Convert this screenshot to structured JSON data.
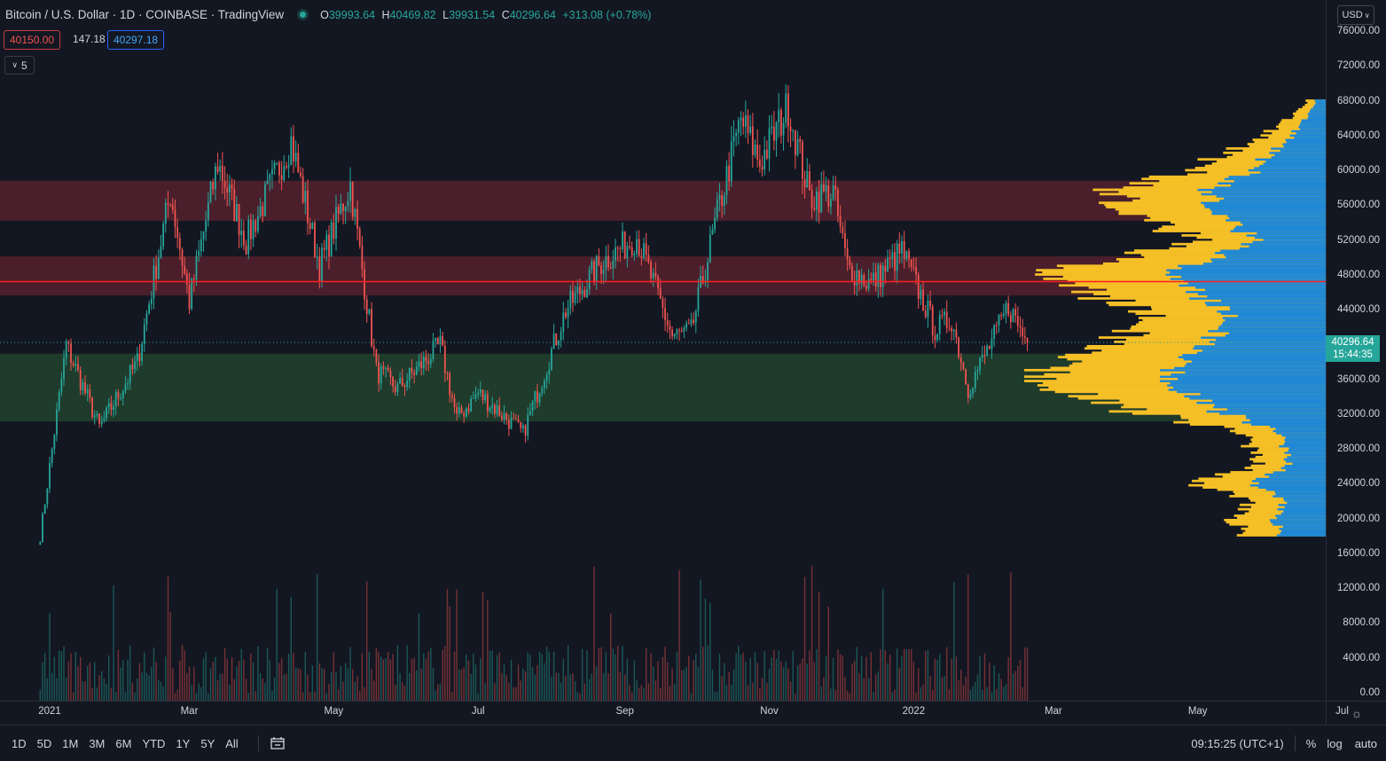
{
  "header": {
    "symbol": "Bitcoin / U.S. Dollar · 1D · COINBASE · TradingView",
    "ohlc": [
      {
        "key": "O",
        "value": "39993.64"
      },
      {
        "key": "H",
        "value": "40469.82"
      },
      {
        "key": "L",
        "value": "39931.54"
      },
      {
        "key": "C",
        "value": "40296.64"
      }
    ],
    "change": "+313.08 (+0.78%)"
  },
  "trade": {
    "sell": "40150.00",
    "spread": "147.18",
    "buy": "40297.18"
  },
  "indicators": {
    "toggle_label": "5"
  },
  "currency": "USD",
  "last_price": {
    "price": "40296.64",
    "countdown": "15:44:35"
  },
  "colors": {
    "background": "#131722",
    "up": "#26a69a",
    "down": "#ef5350",
    "resistance_zone": "#4a1f2b",
    "support_zone": "#1f3b2b",
    "poc_line": "#ff1f1f",
    "profile_gold": "#f5bf26",
    "profile_blue": "#1e88d6"
  },
  "price_axis_ticks": [
    "76000.00",
    "72000.00",
    "68000.00",
    "64000.00",
    "60000.00",
    "56000.00",
    "52000.00",
    "48000.00",
    "44000.00",
    "40000.00",
    "36000.00",
    "32000.00",
    "28000.00",
    "24000.00",
    "20000.00",
    "16000.00",
    "12000.00",
    "8000.00",
    "4000.00",
    "0.00"
  ],
  "time_axis_ticks": [
    "2021",
    "Mar",
    "May",
    "Jul",
    "Sep",
    "Nov",
    "2022",
    "Mar",
    "May",
    "Jul"
  ],
  "bottom_bar": {
    "ranges": [
      "1D",
      "5D",
      "1M",
      "3M",
      "6M",
      "YTD",
      "1Y",
      "5Y",
      "All"
    ],
    "clock": "09:15:25 (UTC+1)",
    "percent": "%",
    "log": "log",
    "auto": "auto"
  },
  "chart_data": {
    "type": "candlestick",
    "y_axis_range": [
      0,
      78000
    ],
    "zones": [
      {
        "kind": "resistance",
        "from": 54300,
        "to": 58900
      },
      {
        "kind": "resistance",
        "from": 45700,
        "to": 50200
      },
      {
        "kind": "support",
        "from": 31200,
        "to": 39000
      }
    ],
    "point_of_control": 47300,
    "last_close": 40296.64,
    "price_path": [
      {
        "date": "2020-12-28",
        "close": 18000
      },
      {
        "date": "2021-01-08",
        "close": 40000
      },
      {
        "date": "2021-01-22",
        "close": 30500
      },
      {
        "date": "2021-02-07",
        "close": 38000
      },
      {
        "date": "2021-02-21",
        "close": 57500
      },
      {
        "date": "2021-03-01",
        "close": 45000
      },
      {
        "date": "2021-03-13",
        "close": 61000
      },
      {
        "date": "2021-03-25",
        "close": 52000
      },
      {
        "date": "2021-04-13",
        "close": 63500
      },
      {
        "date": "2021-04-25",
        "close": 49000
      },
      {
        "date": "2021-05-08",
        "close": 58500
      },
      {
        "date": "2021-05-19",
        "close": 37000
      },
      {
        "date": "2021-05-28",
        "close": 35000
      },
      {
        "date": "2021-06-15",
        "close": 40000
      },
      {
        "date": "2021-06-22",
        "close": 31500
      },
      {
        "date": "2021-07-01",
        "close": 34500
      },
      {
        "date": "2021-07-20",
        "close": 29800
      },
      {
        "date": "2021-08-07",
        "close": 44000
      },
      {
        "date": "2021-08-22",
        "close": 49500
      },
      {
        "date": "2021-09-06",
        "close": 52500
      },
      {
        "date": "2021-09-21",
        "close": 41000
      },
      {
        "date": "2021-09-29",
        "close": 41500
      },
      {
        "date": "2021-10-10",
        "close": 55000
      },
      {
        "date": "2021-10-20",
        "close": 66000
      },
      {
        "date": "2021-10-28",
        "close": 61000
      },
      {
        "date": "2021-11-09",
        "close": 67500
      },
      {
        "date": "2021-11-18",
        "close": 57000
      },
      {
        "date": "2021-11-28",
        "close": 57500
      },
      {
        "date": "2021-12-04",
        "close": 49000
      },
      {
        "date": "2021-12-14",
        "close": 47000
      },
      {
        "date": "2021-12-27",
        "close": 50800
      },
      {
        "date": "2022-01-10",
        "close": 41800
      },
      {
        "date": "2022-01-17",
        "close": 43000
      },
      {
        "date": "2022-01-24",
        "close": 35000
      },
      {
        "date": "2022-02-05",
        "close": 41500
      },
      {
        "date": "2022-02-10",
        "close": 44500
      },
      {
        "date": "2022-02-18",
        "close": 40296.64
      }
    ],
    "volume_profile": [
      {
        "price": 18000,
        "volume": 0.28
      },
      {
        "price": 20000,
        "volume": 0.3
      },
      {
        "price": 22000,
        "volume": 0.26
      },
      {
        "price": 24000,
        "volume": 0.42
      },
      {
        "price": 26000,
        "volume": 0.22
      },
      {
        "price": 28000,
        "volume": 0.25
      },
      {
        "price": 30000,
        "volume": 0.3
      },
      {
        "price": 32000,
        "volume": 0.6
      },
      {
        "price": 34000,
        "volume": 0.82
      },
      {
        "price": 36000,
        "volume": 1.0
      },
      {
        "price": 38000,
        "volume": 0.95
      },
      {
        "price": 40000,
        "volume": 0.7
      },
      {
        "price": 42000,
        "volume": 0.62
      },
      {
        "price": 44000,
        "volume": 0.62
      },
      {
        "price": 46000,
        "volume": 0.78
      },
      {
        "price": 47300,
        "volume": 1.0
      },
      {
        "price": 48500,
        "volume": 0.9
      },
      {
        "price": 50000,
        "volume": 0.65
      },
      {
        "price": 52000,
        "volume": 0.4
      },
      {
        "price": 54000,
        "volume": 0.6
      },
      {
        "price": 56000,
        "volume": 0.72
      },
      {
        "price": 58000,
        "volume": 0.7
      },
      {
        "price": 60000,
        "volume": 0.42
      },
      {
        "price": 62000,
        "volume": 0.34
      },
      {
        "price": 64000,
        "volume": 0.2
      },
      {
        "price": 66000,
        "volume": 0.12
      },
      {
        "price": 68000,
        "volume": 0.06
      }
    ]
  }
}
